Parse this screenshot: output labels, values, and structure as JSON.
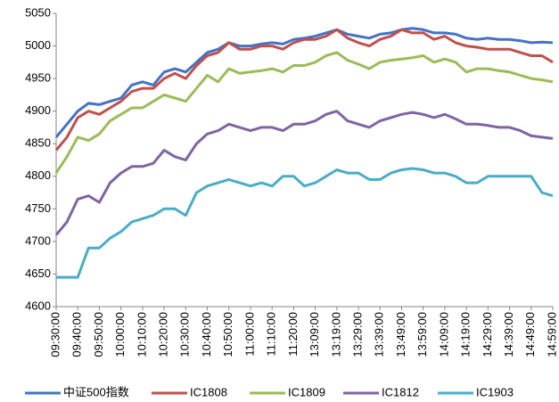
{
  "chart_data": {
    "type": "line",
    "categories": [
      "09:30:00",
      null,
      "09:40:00",
      null,
      "09:50:00",
      null,
      "10:00:00",
      null,
      "10:10:00",
      null,
      "10:20:00",
      null,
      "10:30:00",
      null,
      "10:40:00",
      null,
      "10:50:00",
      null,
      "11:00:00",
      null,
      "11:10:00",
      null,
      "11:20:00",
      null,
      "13:09:00",
      null,
      "13:19:00",
      null,
      "13:29:00",
      null,
      "13:39:00",
      null,
      "13:49:00",
      null,
      "13:59:00",
      null,
      "14:09:00",
      null,
      "14:19:00",
      null,
      "14:29:00",
      null,
      "14:39:00",
      null,
      "14:49:00",
      null,
      "14:59:00"
    ],
    "series": [
      {
        "name": "中证500指数",
        "color": "#4472c4",
        "values": [
          4860,
          4880,
          4900,
          4912,
          4910,
          4915,
          4920,
          4940,
          4945,
          4940,
          4960,
          4965,
          4960,
          4975,
          4990,
          4995,
          5005,
          5000,
          5000,
          5003,
          5005,
          5003,
          5010,
          5012,
          5015,
          5020,
          5025,
          5018,
          5015,
          5012,
          5018,
          5020,
          5025,
          5027,
          5025,
          5020,
          5020,
          5018,
          5012,
          5010,
          5012,
          5010,
          5010,
          5008,
          5005,
          5006,
          5005
        ]
      },
      {
        "name": "IC1808",
        "color": "#c0504d",
        "values": [
          4840,
          4860,
          4890,
          4900,
          4895,
          4905,
          4915,
          4930,
          4935,
          4935,
          4950,
          4958,
          4950,
          4970,
          4985,
          4990,
          5005,
          4995,
          4995,
          5000,
          5000,
          4995,
          5005,
          5010,
          5010,
          5015,
          5025,
          5012,
          5005,
          5000,
          5010,
          5015,
          5025,
          5020,
          5020,
          5010,
          5015,
          5005,
          5000,
          4998,
          4995,
          4995,
          4995,
          4990,
          4985,
          4985,
          4975
        ]
      },
      {
        "name": "IC1809",
        "color": "#9bbb59",
        "values": [
          4805,
          4830,
          4860,
          4855,
          4865,
          4885,
          4895,
          4905,
          4905,
          4915,
          4925,
          4920,
          4915,
          4935,
          4955,
          4945,
          4965,
          4958,
          4960,
          4962,
          4965,
          4960,
          4970,
          4970,
          4975,
          4985,
          4990,
          4978,
          4972,
          4965,
          4975,
          4978,
          4980,
          4982,
          4985,
          4975,
          4980,
          4975,
          4960,
          4965,
          4965,
          4962,
          4960,
          4955,
          4950,
          4948,
          4945
        ]
      },
      {
        "name": "IC1812",
        "color": "#8064a2",
        "values": [
          4710,
          4730,
          4765,
          4770,
          4760,
          4790,
          4805,
          4815,
          4815,
          4820,
          4840,
          4830,
          4825,
          4850,
          4865,
          4870,
          4880,
          4875,
          4870,
          4875,
          4875,
          4870,
          4880,
          4880,
          4885,
          4895,
          4900,
          4885,
          4880,
          4875,
          4885,
          4890,
          4895,
          4898,
          4895,
          4890,
          4895,
          4888,
          4880,
          4880,
          4878,
          4875,
          4875,
          4870,
          4862,
          4860,
          4858
        ]
      },
      {
        "name": "IC1903",
        "color": "#4bacc6",
        "values": [
          4645,
          4645,
          4645,
          4690,
          4690,
          4705,
          4715,
          4730,
          4735,
          4740,
          4750,
          4750,
          4740,
          4775,
          4785,
          4790,
          4795,
          4790,
          4785,
          4790,
          4785,
          4800,
          4800,
          4785,
          4790,
          4800,
          4810,
          4805,
          4805,
          4795,
          4795,
          4805,
          4810,
          4812,
          4810,
          4805,
          4805,
          4800,
          4790,
          4790,
          4800,
          4800,
          4800,
          4800,
          4800,
          4775,
          4770
        ]
      }
    ],
    "ylim": [
      4600,
      5050
    ],
    "yticks": [
      4600,
      4650,
      4700,
      4750,
      4800,
      4850,
      4900,
      4950,
      5000,
      5050
    ],
    "grid": false
  }
}
